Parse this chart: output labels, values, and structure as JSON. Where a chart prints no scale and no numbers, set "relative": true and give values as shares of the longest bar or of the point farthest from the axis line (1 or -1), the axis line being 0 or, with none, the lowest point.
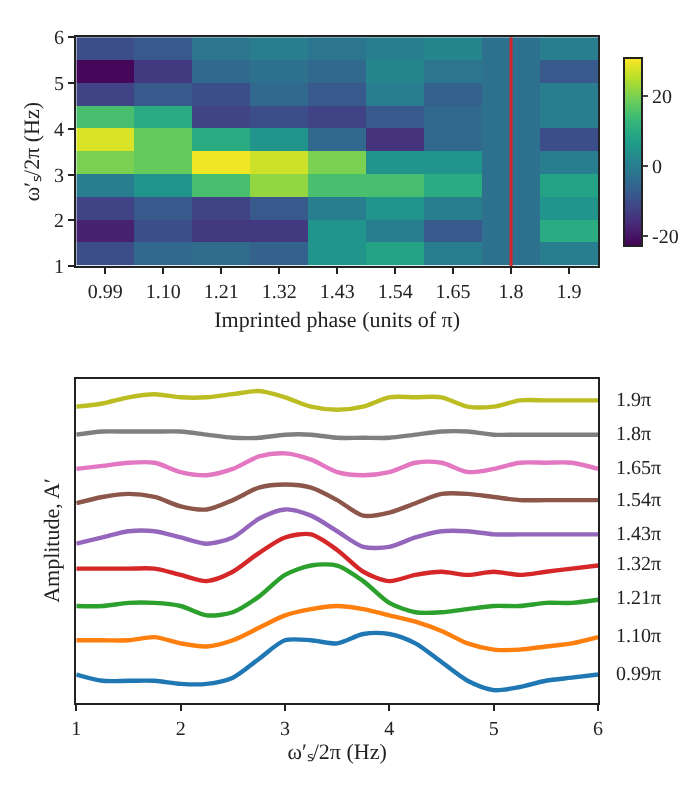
{
  "chart_data": [
    {
      "type": "heatmap",
      "xlabel": "Imprinted phase (units of π)",
      "ylabel": "ω′ₛ/2π (Hz)",
      "categories": [
        "0.99",
        "1.10",
        "1.21",
        "1.32",
        "1.43",
        "1.54",
        "1.65",
        "1.8",
        "1.9"
      ],
      "ylim": [
        1,
        6
      ],
      "yticks": [
        1,
        2,
        3,
        4,
        5,
        6
      ],
      "cells": [
        [
          -10,
          -8,
          -2,
          0,
          -2,
          0,
          2,
          -3,
          0
        ],
        [
          -22,
          -14,
          -5,
          -3,
          -5,
          2,
          -2,
          -3,
          -8
        ],
        [
          -12,
          -8,
          -10,
          -5,
          -8,
          0,
          -6,
          -3,
          0
        ],
        [
          15,
          10,
          -12,
          -10,
          -12,
          -8,
          -5,
          -3,
          0
        ],
        [
          28,
          18,
          10,
          5,
          -5,
          -15,
          -5,
          -3,
          -10
        ],
        [
          20,
          18,
          30,
          27,
          20,
          5,
          5,
          -3,
          0
        ],
        [
          0,
          5,
          15,
          22,
          15,
          15,
          10,
          -3,
          8
        ],
        [
          -12,
          -8,
          -12,
          -8,
          0,
          5,
          0,
          -3,
          5
        ],
        [
          -18,
          -10,
          -14,
          -14,
          5,
          0,
          -8,
          -3,
          10
        ],
        [
          -10,
          -5,
          -4,
          -6,
          5,
          8,
          0,
          -3,
          0
        ]
      ],
      "clim": [
        -23,
        31
      ],
      "cticks": [
        -20,
        0,
        20
      ],
      "ref_lines": [
        {
          "axis": "x",
          "value": "1.8",
          "color": "#d62728"
        }
      ]
    },
    {
      "type": "line",
      "relative": true,
      "xlabel": "ω′ₛ/2π (Hz)",
      "ylabel": "Amplitude, A′",
      "x": [
        1,
        1.25,
        1.5,
        1.75,
        2,
        2.25,
        2.5,
        2.75,
        3,
        3.25,
        3.5,
        3.75,
        4,
        4.25,
        4.5,
        4.75,
        5,
        5.25,
        5.5,
        5.75,
        6
      ],
      "xlim": [
        1,
        6
      ],
      "xticks": [
        1,
        2,
        3,
        4,
        5,
        6
      ],
      "marker": "none",
      "line_style": "solid",
      "series": [
        {
          "name": "0.99π",
          "color": "#1f77b4",
          "values": [
            0.09,
            0.07,
            0.07,
            0.07,
            0.06,
            0.06,
            0.08,
            0.14,
            0.2,
            0.2,
            0.19,
            0.22,
            0.22,
            0.19,
            0.13,
            0.07,
            0.04,
            0.05,
            0.07,
            0.08,
            0.09
          ]
        },
        {
          "name": "1.10π",
          "color": "#ff7f0e",
          "values": [
            0.2,
            0.2,
            0.2,
            0.21,
            0.19,
            0.18,
            0.2,
            0.24,
            0.28,
            0.3,
            0.31,
            0.3,
            0.28,
            0.26,
            0.23,
            0.19,
            0.17,
            0.17,
            0.18,
            0.19,
            0.21
          ]
        },
        {
          "name": "1.21π",
          "color": "#2ca02c",
          "values": [
            0.31,
            0.31,
            0.32,
            0.32,
            0.31,
            0.28,
            0.29,
            0.34,
            0.41,
            0.44,
            0.44,
            0.39,
            0.32,
            0.29,
            0.29,
            0.3,
            0.31,
            0.31,
            0.32,
            0.32,
            0.33
          ]
        },
        {
          "name": "1.32π",
          "color": "#d62728",
          "values": [
            0.43,
            0.43,
            0.43,
            0.43,
            0.41,
            0.39,
            0.42,
            0.48,
            0.53,
            0.54,
            0.49,
            0.42,
            0.39,
            0.41,
            0.42,
            0.41,
            0.42,
            0.41,
            0.42,
            0.43,
            0.44
          ]
        },
        {
          "name": "1.43π",
          "color": "#9467bd",
          "values": [
            0.51,
            0.53,
            0.55,
            0.55,
            0.53,
            0.51,
            0.53,
            0.59,
            0.62,
            0.6,
            0.55,
            0.5,
            0.5,
            0.53,
            0.55,
            0.55,
            0.54,
            0.54,
            0.54,
            0.54,
            0.54
          ]
        },
        {
          "name": "1.54π",
          "color": "#8c564b",
          "values": [
            0.64,
            0.66,
            0.67,
            0.66,
            0.63,
            0.62,
            0.65,
            0.69,
            0.7,
            0.69,
            0.65,
            0.6,
            0.61,
            0.64,
            0.67,
            0.67,
            0.66,
            0.65,
            0.65,
            0.65,
            0.65
          ]
        },
        {
          "name": "1.65π",
          "color": "#e377c2",
          "values": [
            0.75,
            0.76,
            0.77,
            0.77,
            0.74,
            0.73,
            0.75,
            0.79,
            0.8,
            0.78,
            0.74,
            0.73,
            0.74,
            0.77,
            0.77,
            0.74,
            0.75,
            0.77,
            0.77,
            0.77,
            0.75
          ]
        },
        {
          "name": "1.8π",
          "color": "#7f7f7f",
          "values": [
            0.86,
            0.87,
            0.87,
            0.87,
            0.87,
            0.86,
            0.85,
            0.85,
            0.86,
            0.86,
            0.85,
            0.85,
            0.85,
            0.86,
            0.87,
            0.87,
            0.86,
            0.86,
            0.86,
            0.86,
            0.86
          ]
        },
        {
          "name": "1.9π",
          "color": "#bcbd22",
          "values": [
            0.95,
            0.96,
            0.98,
            0.99,
            0.98,
            0.98,
            0.99,
            1,
            0.98,
            0.95,
            0.94,
            0.95,
            0.98,
            0.98,
            0.98,
            0.95,
            0.95,
            0.97,
            0.97,
            0.97,
            0.97
          ]
        }
      ]
    }
  ]
}
